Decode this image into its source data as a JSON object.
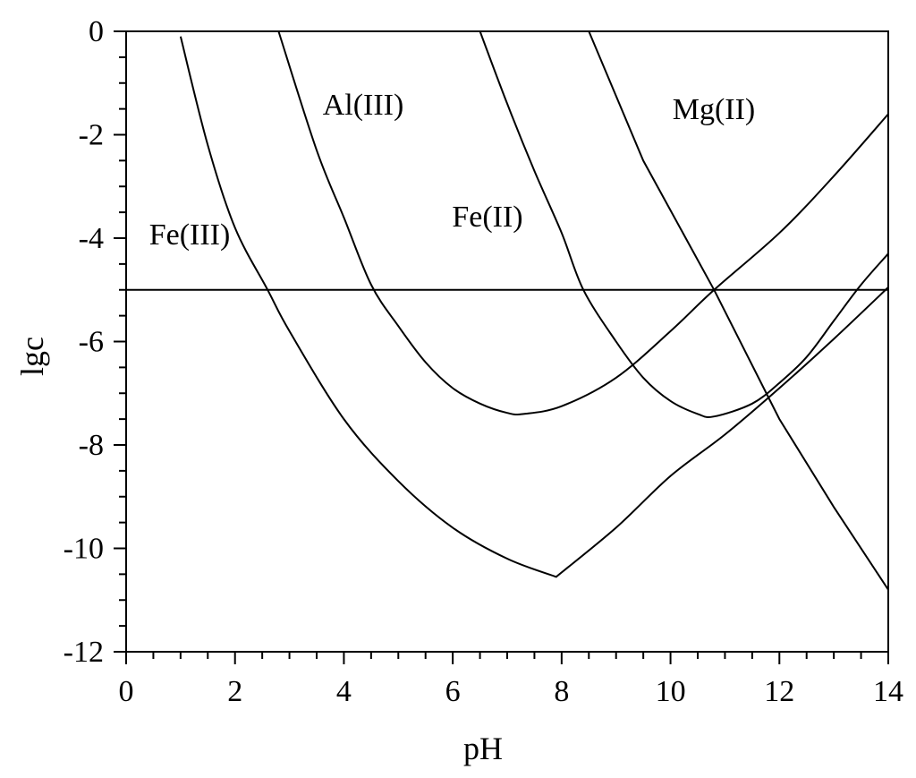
{
  "chart_data": {
    "type": "line",
    "title": "",
    "xlabel": "pH",
    "ylabel": "lgc",
    "xlim": [
      0,
      14
    ],
    "ylim": [
      -12,
      0
    ],
    "x_ticks": [
      0,
      2,
      4,
      6,
      8,
      10,
      12,
      14
    ],
    "y_ticks": [
      0,
      -2,
      -4,
      -6,
      -8,
      -10,
      -12
    ],
    "x_tick_labels": [
      "0",
      "2",
      "4",
      "6",
      "8",
      "10",
      "12",
      "14"
    ],
    "y_tick_labels": [
      "0",
      "-2",
      "-4",
      "-6",
      "-8",
      "-10",
      "-12"
    ],
    "grid": false,
    "legend": "none",
    "reference_line": {
      "y": -5
    },
    "series": [
      {
        "name": "Fe(III)",
        "x": [
          1.0,
          1.5,
          2.0,
          2.6,
          3.0,
          4.0,
          5.0,
          6.0,
          7.0,
          7.9,
          9.0,
          10.0,
          11.0,
          12.0,
          13.0,
          14.0
        ],
        "y": [
          -0.1,
          -2.2,
          -3.8,
          -5.0,
          -5.8,
          -7.5,
          -8.7,
          -9.6,
          -10.2,
          -10.55,
          -9.6,
          -8.6,
          -7.8,
          -6.9,
          -5.95,
          -4.95
        ]
      },
      {
        "name": "Al(III)",
        "x": [
          2.8,
          3.5,
          4.0,
          4.5,
          5.0,
          5.5,
          6.0,
          6.5,
          7.0,
          7.3,
          8.0,
          9.0,
          10.0,
          10.8,
          12.0,
          13.0,
          14.0
        ],
        "y": [
          0.0,
          -2.3,
          -3.6,
          -4.9,
          -5.7,
          -6.4,
          -6.9,
          -7.2,
          -7.38,
          -7.4,
          -7.25,
          -6.7,
          -5.8,
          -5.0,
          -3.9,
          -2.8,
          -1.6
        ]
      },
      {
        "name": "Fe(II)",
        "x": [
          6.5,
          7.0,
          7.5,
          8.0,
          8.4,
          9.0,
          9.5,
          10.0,
          10.5,
          10.8,
          11.5,
          12.0,
          12.5,
          13.0,
          13.5,
          14.0
        ],
        "y": [
          0.0,
          -1.4,
          -2.7,
          -3.9,
          -5.0,
          -6.0,
          -6.7,
          -7.15,
          -7.4,
          -7.45,
          -7.2,
          -6.8,
          -6.3,
          -5.6,
          -4.9,
          -4.3
        ]
      },
      {
        "name": "Mg(II)",
        "x": [
          8.5,
          9.5,
          10.8,
          12.0,
          13.0,
          14.0
        ],
        "y": [
          0.0,
          -2.5,
          -5.0,
          -7.5,
          -9.2,
          -10.8
        ]
      }
    ],
    "annotations": [
      {
        "text": "Fe(III)",
        "series": "Fe(III)"
      },
      {
        "text": "Al(III)",
        "series": "Al(III)"
      },
      {
        "text": "Fe(II)",
        "series": "Fe(II)"
      },
      {
        "text": "Mg(II)",
        "series": "Mg(II)"
      }
    ]
  }
}
